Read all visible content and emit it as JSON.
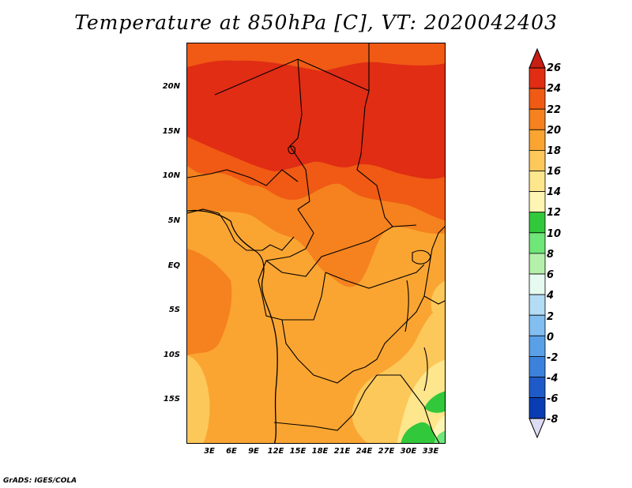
{
  "title": "Temperature at 850hPa [C], VT: 2020042403",
  "credit": "GrADS: IGES/COLA",
  "map": {
    "variable": "Temperature at 850hPa",
    "units": "C",
    "lat_labels": [
      "20N",
      "15N",
      "10N",
      "5N",
      "EQ",
      "5S",
      "10S",
      "15S"
    ],
    "lon_labels": [
      "3E",
      "6E",
      "9E",
      "12E",
      "15E",
      "18E",
      "21E",
      "24E",
      "27E",
      "30E",
      "33E"
    ],
    "lat_range": [
      -20,
      25
    ],
    "lon_range": [
      0,
      35
    ]
  },
  "colorbar": {
    "levels": [
      "26",
      "24",
      "22",
      "20",
      "18",
      "16",
      "14",
      "12",
      "10",
      "8",
      "6",
      "4",
      "2",
      "0",
      "-2",
      "-4",
      "-6",
      "-8"
    ],
    "colors": {
      "above_26": "#c81e14",
      "24_26": "#e02d14",
      "22_24": "#f05a14",
      "20_22": "#f5821e",
      "18_20": "#faa532",
      "16_18": "#fcc85a",
      "14_16": "#fde68c",
      "12_14": "#fef5b4",
      "10_12": "#32c83c",
      "8_10": "#6ee678",
      "6_8": "#b4f0aa",
      "4_6": "#e6faf0",
      "2_4": "#b4dcf5",
      "0_2": "#82bef0",
      "-2_0": "#5aa0e6",
      "-4_-2": "#3c82dc",
      "-6_-4": "#1e5ac8",
      "-8_-6": "#0a3cb4",
      "below_-8": "#0a1464",
      "extend_low": "#dcdcf5"
    }
  }
}
